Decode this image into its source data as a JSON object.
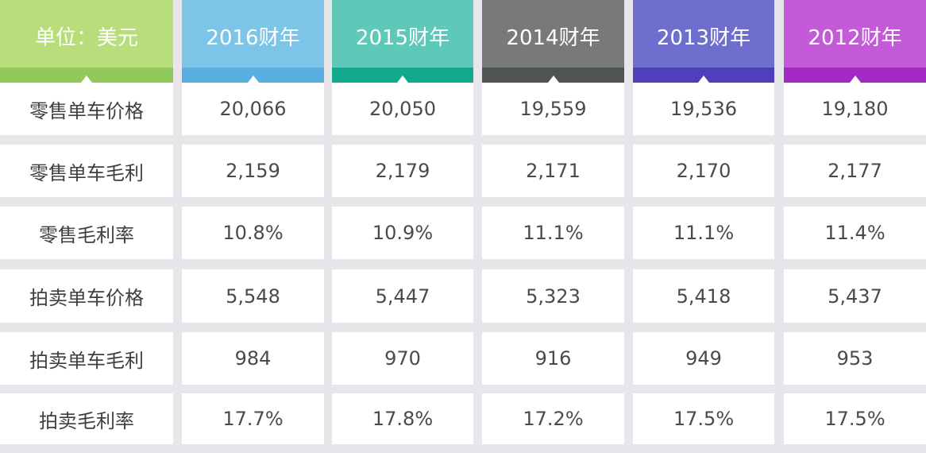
{
  "header": {
    "unit_label": "单位：美元",
    "columns": [
      {
        "label": "2016财年",
        "color": "#7cc4e8",
        "bar_color": "#5aaee0"
      },
      {
        "label": "2015财年",
        "color": "#5ec9b8",
        "bar_color": "#13a98f"
      },
      {
        "label": "2014财年",
        "color": "#777a78",
        "bar_color": "#4f5352"
      },
      {
        "label": "2013财年",
        "color": "#6e6ecf",
        "bar_color": "#4f3fb8"
      },
      {
        "label": "2012财年",
        "color": "#c45ad8",
        "bar_color": "#a52ac4"
      }
    ],
    "unit_color": "#b7de7a",
    "unit_bar_color": "#8fc95a"
  },
  "rows": [
    {
      "label": "零售单车价格",
      "values": [
        "20,066",
        "20,050",
        "19,559",
        "19,536",
        "19,180"
      ]
    },
    {
      "label": "零售单车毛利",
      "values": [
        "2,159",
        "2,179",
        "2,171",
        "2,170",
        "2,177"
      ]
    },
    {
      "label": "零售毛利率",
      "values": [
        "10.8%",
        "10.9%",
        "11.1%",
        "11.1%",
        "11.4%"
      ]
    },
    {
      "label": "拍卖单车价格",
      "values": [
        "5,548",
        "5,447",
        "5,323",
        "5,418",
        "5,437"
      ]
    },
    {
      "label": "拍卖单车毛利",
      "values": [
        "984",
        "970",
        "916",
        "949",
        "953"
      ]
    },
    {
      "label": "拍卖毛利率",
      "values": [
        "17.7%",
        "17.8%",
        "17.2%",
        "17.5%",
        "17.5%"
      ]
    }
  ],
  "chart_data": {
    "type": "table",
    "columns": [
      "2016财年",
      "2015财年",
      "2014财年",
      "2013财年",
      "2012财年"
    ],
    "row_header": "单位：美元",
    "rows": [
      {
        "name": "零售单车价格",
        "values": [
          20066,
          20050,
          19559,
          19536,
          19180
        ]
      },
      {
        "name": "零售单车毛利",
        "values": [
          2159,
          2179,
          2171,
          2170,
          2177
        ]
      },
      {
        "name": "零售毛利率",
        "values": [
          10.8,
          10.9,
          11.1,
          11.1,
          11.4
        ],
        "unit": "%"
      },
      {
        "name": "拍卖单车价格",
        "values": [
          5548,
          5447,
          5323,
          5418,
          5437
        ]
      },
      {
        "name": "拍卖单车毛利",
        "values": [
          984,
          970,
          916,
          949,
          953
        ]
      },
      {
        "name": "拍卖毛利率",
        "values": [
          17.7,
          17.8,
          17.2,
          17.5,
          17.5
        ],
        "unit": "%"
      }
    ]
  }
}
